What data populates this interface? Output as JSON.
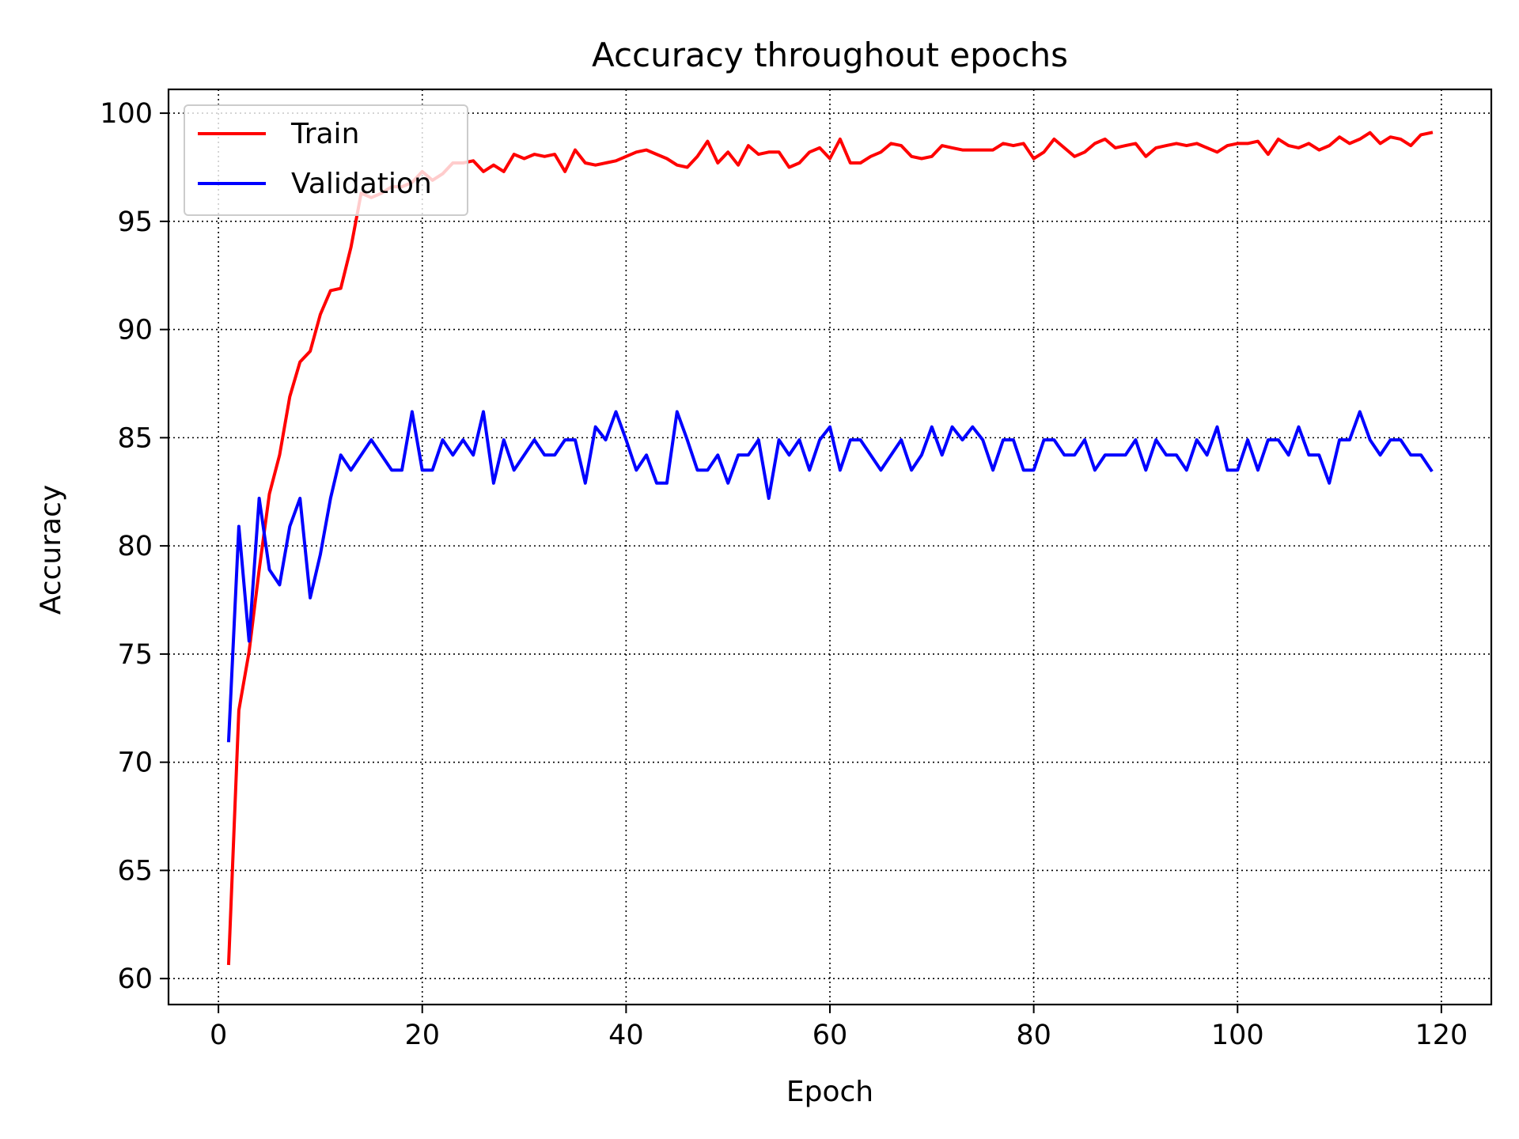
{
  "chart_data": {
    "type": "line",
    "title": "Accuracy throughout epochs",
    "xlabel": "Epoch",
    "ylabel": "Accuracy",
    "xlim": [
      -4.9,
      124.9
    ],
    "ylim": [
      58.8,
      101.1
    ],
    "xticks": [
      0,
      20,
      40,
      60,
      80,
      100,
      120
    ],
    "yticks": [
      60,
      65,
      70,
      75,
      80,
      85,
      90,
      95,
      100
    ],
    "grid": true,
    "legend_position": "top-left",
    "x": [
      1,
      2,
      3,
      4,
      5,
      6,
      7,
      8,
      9,
      10,
      11,
      12,
      13,
      14,
      15,
      16,
      17,
      18,
      19,
      20,
      21,
      22,
      23,
      24,
      25,
      26,
      27,
      28,
      29,
      30,
      31,
      32,
      33,
      34,
      35,
      36,
      37,
      38,
      39,
      40,
      41,
      42,
      43,
      44,
      45,
      46,
      47,
      48,
      49,
      50,
      51,
      52,
      53,
      54,
      55,
      56,
      57,
      58,
      59,
      60,
      61,
      62,
      63,
      64,
      65,
      66,
      67,
      68,
      69,
      70,
      71,
      72,
      73,
      74,
      75,
      76,
      77,
      78,
      79,
      80,
      81,
      82,
      83,
      84,
      85,
      86,
      87,
      88,
      89,
      90,
      91,
      92,
      93,
      94,
      95,
      96,
      97,
      98,
      99,
      100,
      101,
      102,
      103,
      104,
      105,
      106,
      107,
      108,
      109,
      110,
      111,
      112,
      113,
      114,
      115,
      116,
      117,
      118,
      119
    ],
    "series": [
      {
        "name": "Train",
        "color": "#ff0000",
        "values": [
          60.7,
          72.4,
          75.1,
          78.9,
          82.4,
          84.2,
          86.9,
          88.5,
          89.0,
          90.7,
          91.8,
          91.9,
          93.8,
          96.3,
          96.1,
          96.3,
          96.6,
          96.6,
          96.8,
          97.3,
          96.9,
          97.2,
          97.7,
          97.7,
          97.8,
          97.3,
          97.6,
          97.3,
          98.1,
          97.9,
          98.1,
          98.0,
          98.1,
          97.3,
          98.3,
          97.7,
          97.6,
          97.7,
          97.8,
          98.0,
          98.2,
          98.3,
          98.1,
          97.9,
          97.6,
          97.5,
          98.0,
          98.7,
          97.7,
          98.2,
          97.6,
          98.5,
          98.1,
          98.2,
          98.2,
          97.5,
          97.7,
          98.2,
          98.4,
          97.9,
          98.8,
          97.7,
          97.7,
          98.0,
          98.2,
          98.6,
          98.5,
          98.0,
          97.9,
          98.0,
          98.5,
          98.4,
          98.3,
          98.3,
          98.3,
          98.3,
          98.6,
          98.5,
          98.6,
          97.9,
          98.2,
          98.8,
          98.4,
          98.0,
          98.2,
          98.6,
          98.8,
          98.4,
          98.5,
          98.6,
          98.0,
          98.4,
          98.5,
          98.6,
          98.5,
          98.6,
          98.4,
          98.2,
          98.5,
          98.6,
          98.6,
          98.7,
          98.1,
          98.8,
          98.5,
          98.4,
          98.6,
          98.3,
          98.5,
          98.9,
          98.6,
          98.8,
          99.1,
          98.6,
          98.9,
          98.8,
          98.5,
          99.0,
          99.1
        ]
      },
      {
        "name": "Validation",
        "color": "#0000ff",
        "values": [
          71.0,
          80.9,
          75.6,
          82.2,
          78.9,
          78.2,
          80.9,
          82.2,
          77.6,
          79.6,
          82.2,
          84.2,
          83.5,
          84.2,
          84.9,
          84.2,
          83.5,
          83.5,
          86.2,
          83.5,
          83.5,
          84.9,
          84.2,
          84.9,
          84.2,
          86.2,
          82.9,
          84.9,
          83.5,
          84.2,
          84.9,
          84.2,
          84.2,
          84.9,
          84.9,
          82.9,
          85.5,
          84.9,
          86.2,
          84.9,
          83.5,
          84.2,
          82.9,
          82.9,
          86.2,
          84.9,
          83.5,
          83.5,
          84.2,
          82.9,
          84.2,
          84.2,
          84.9,
          82.2,
          84.9,
          84.2,
          84.9,
          83.5,
          84.9,
          85.5,
          83.5,
          84.9,
          84.9,
          84.2,
          83.5,
          84.2,
          84.9,
          83.5,
          84.2,
          85.5,
          84.2,
          85.5,
          84.9,
          85.5,
          84.9,
          83.5,
          84.9,
          84.9,
          83.5,
          83.5,
          84.9,
          84.9,
          84.2,
          84.2,
          84.9,
          83.5,
          84.2,
          84.2,
          84.2,
          84.9,
          83.5,
          84.9,
          84.2,
          84.2,
          83.5,
          84.9,
          84.2,
          85.5,
          83.5,
          83.5,
          84.9,
          83.5,
          84.9,
          84.9,
          84.2,
          85.5,
          84.2,
          84.2,
          82.9,
          84.9,
          84.9,
          86.2,
          84.9,
          84.2,
          84.9,
          84.9,
          84.2,
          84.2,
          83.5
        ]
      }
    ]
  }
}
